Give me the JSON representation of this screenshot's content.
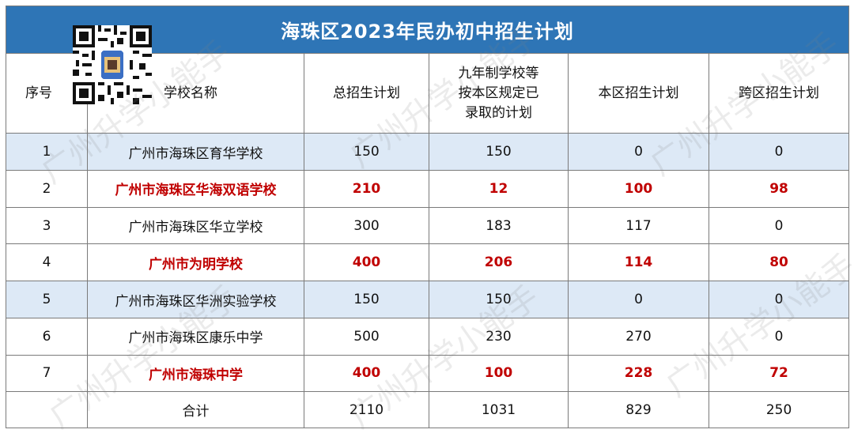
{
  "title": "海珠区2023年民办初中招生计划",
  "headers": {
    "index": "序号",
    "school": "学校名称",
    "total_plan": "总招生计划",
    "nine_year_line1": "九年制学校等",
    "nine_year_line2": "按本区规定已",
    "nine_year_line3": "录取的计划",
    "local_plan": "本区招生计划",
    "cross_plan": "跨区招生计划"
  },
  "rows": [
    {
      "index": "1",
      "school": "广州市海珠区育华学校",
      "total": "150",
      "admitted": "150",
      "local": "0",
      "cross": "0"
    },
    {
      "index": "2",
      "school": "广州市海珠区华海双语学校",
      "total": "210",
      "admitted": "12",
      "local": "100",
      "cross": "98"
    },
    {
      "index": "3",
      "school": "广州市海珠区华立学校",
      "total": "300",
      "admitted": "183",
      "local": "117",
      "cross": "0"
    },
    {
      "index": "4",
      "school": "广州市为明学校",
      "total": "400",
      "admitted": "206",
      "local": "114",
      "cross": "80"
    },
    {
      "index": "5",
      "school": "广州市海珠区华洲实验学校",
      "total": "150",
      "admitted": "150",
      "local": "0",
      "cross": "0"
    },
    {
      "index": "6",
      "school": "广州市海珠区康乐中学",
      "total": "500",
      "admitted": "230",
      "local": "270",
      "cross": "0"
    },
    {
      "index": "7",
      "school": "广州市海珠中学",
      "total": "400",
      "admitted": "100",
      "local": "228",
      "cross": "72"
    }
  ],
  "totals": {
    "label": "合计",
    "total": "2110",
    "admitted": "1031",
    "local": "829",
    "cross": "250"
  },
  "watermark": "广州升学小能手",
  "colors": {
    "title_bg": "#2e75b6",
    "highlight_text": "#c00000",
    "shaded_row": "#dde9f6"
  }
}
